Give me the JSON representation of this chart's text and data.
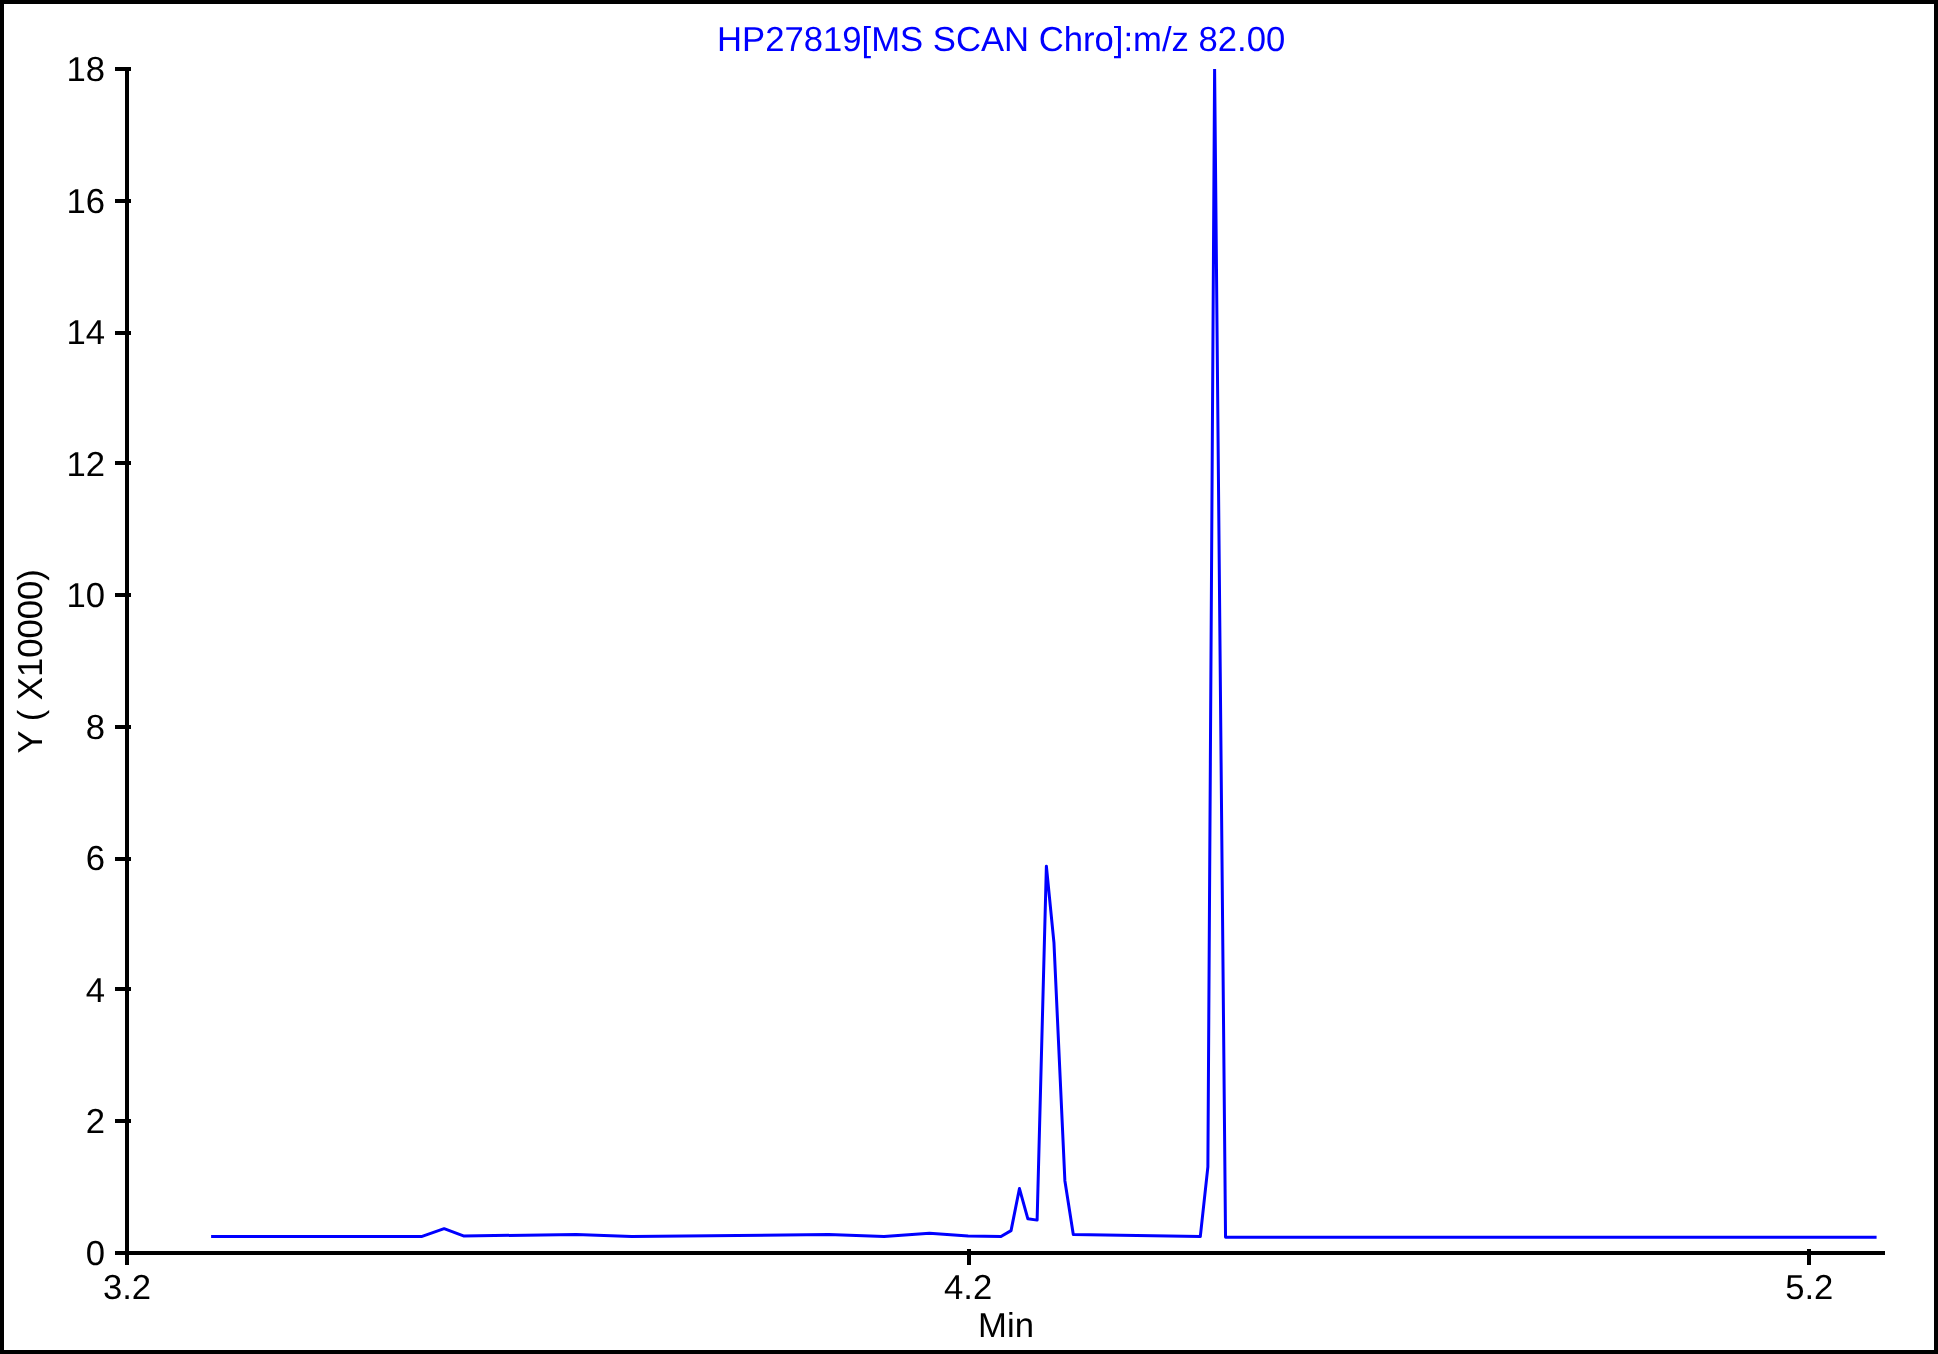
{
  "chart_data": {
    "type": "line",
    "title": "HP27819[MS SCAN Chro]:m/z  82.00",
    "xlabel": "Min",
    "ylabel": "Y ( X10000)",
    "series": [
      {
        "color": "#0000ff",
        "x": [
          3.3,
          3.55,
          3.577,
          3.6,
          3.734,
          3.8,
          4.034,
          4.1,
          4.154,
          4.2,
          4.239,
          4.251,
          4.261,
          4.271,
          4.282,
          4.293,
          4.302,
          4.315,
          4.325,
          4.476,
          4.485,
          4.493,
          4.506,
          5.28
        ],
        "values": [
          0.25,
          0.25,
          0.37,
          0.26,
          0.28,
          0.25,
          0.28,
          0.25,
          0.3,
          0.26,
          0.25,
          0.34,
          0.98,
          0.52,
          0.5,
          5.88,
          4.72,
          1.1,
          0.28,
          0.25,
          1.31,
          18.0,
          0.24,
          0.24
        ]
      }
    ],
    "xlim": [
      3.2,
      5.29
    ],
    "ylim": [
      0,
      18
    ],
    "xticks": [
      3.2,
      4.2,
      5.2
    ],
    "yticks": [
      0,
      2,
      4,
      6,
      8,
      10,
      12,
      14,
      16,
      18
    ],
    "grid": false,
    "marker": "none",
    "line_style": "solid"
  }
}
